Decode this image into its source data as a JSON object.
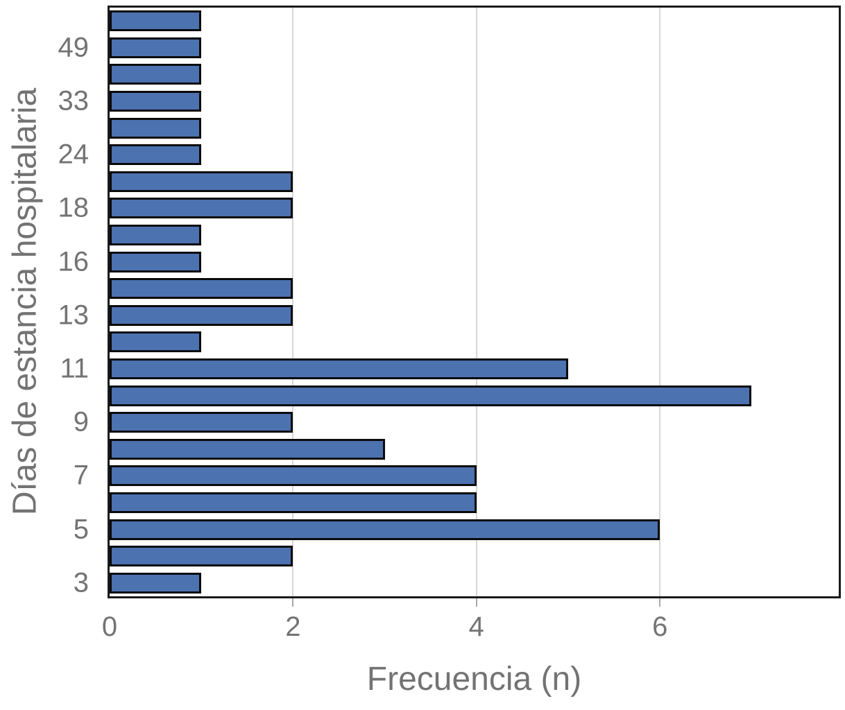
{
  "figure": {
    "background_color": "#ffffff"
  },
  "chart_data": {
    "type": "bar",
    "orientation": "horizontal",
    "title": "",
    "xlabel": "Frecuencia (n)",
    "ylabel": "Días de estancia hospitalaria",
    "xlim": [
      0,
      7.95
    ],
    "xticks": [
      {
        "label": "0",
        "value": 0
      },
      {
        "label": "2",
        "value": 2
      },
      {
        "label": "4",
        "value": 4
      },
      {
        "label": "6",
        "value": 6
      }
    ],
    "grid": {
      "axis": "x",
      "shown_at": [
        2,
        4,
        6
      ],
      "color": "#d6d6d6"
    },
    "legend": "none",
    "note": "y tick labels are shown only on every second bar",
    "bars": [
      {
        "label": "",
        "value": 1
      },
      {
        "label": "49",
        "value": 1
      },
      {
        "label": "",
        "value": 1
      },
      {
        "label": "33",
        "value": 1
      },
      {
        "label": "",
        "value": 1
      },
      {
        "label": "24",
        "value": 1
      },
      {
        "label": "",
        "value": 2
      },
      {
        "label": "18",
        "value": 2
      },
      {
        "label": "",
        "value": 1
      },
      {
        "label": "16",
        "value": 1
      },
      {
        "label": "",
        "value": 2
      },
      {
        "label": "13",
        "value": 2
      },
      {
        "label": "",
        "value": 1
      },
      {
        "label": "11",
        "value": 5
      },
      {
        "label": "",
        "value": 7
      },
      {
        "label": "9",
        "value": 2
      },
      {
        "label": "",
        "value": 3
      },
      {
        "label": "7",
        "value": 4
      },
      {
        "label": "",
        "value": 4
      },
      {
        "label": "5",
        "value": 6
      },
      {
        "label": "",
        "value": 2
      },
      {
        "label": "3",
        "value": 1
      }
    ],
    "colors": {
      "bar_fill": "#4C72B0",
      "bar_edge": "#0a0a0a",
      "frame": "#1a1a1a",
      "text": "#737373",
      "gridline": "#d6d6d6"
    }
  }
}
